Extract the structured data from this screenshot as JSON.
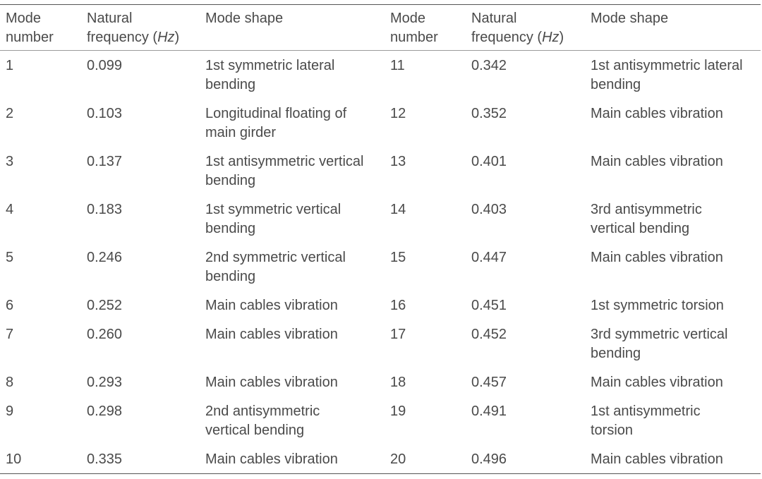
{
  "header": {
    "mode_number": [
      "Mode",
      "number"
    ],
    "natural_frequency": [
      "Natural",
      "frequency ("
    ],
    "unit": "Hz",
    "paren_close": ")",
    "mode_shape": "Mode shape"
  },
  "rows": [
    {
      "l_mode": "1",
      "l_freq": "0.099",
      "l_shape": [
        "1st symmetric lateral",
        "bending"
      ],
      "r_mode": "11",
      "r_freq": "0.342",
      "r_shape": [
        "1st antisymmetric lateral",
        "bending"
      ]
    },
    {
      "l_mode": "2",
      "l_freq": "0.103",
      "l_shape": [
        "Longitudinal floating of",
        "main girder"
      ],
      "r_mode": "12",
      "r_freq": "0.352",
      "r_shape": [
        "Main cables vibration",
        ""
      ]
    },
    {
      "l_mode": "3",
      "l_freq": "0.137",
      "l_shape": [
        "1st antisymmetric vertical",
        "bending"
      ],
      "r_mode": "13",
      "r_freq": "0.401",
      "r_shape": [
        "Main cables vibration",
        ""
      ]
    },
    {
      "l_mode": "4",
      "l_freq": "0.183",
      "l_shape": [
        "1st symmetric vertical",
        "bending"
      ],
      "r_mode": "14",
      "r_freq": "0.403",
      "r_shape": [
        "3rd antisymmetric",
        "vertical bending"
      ]
    },
    {
      "l_mode": "5",
      "l_freq": "0.246",
      "l_shape": [
        "2nd symmetric vertical",
        "bending"
      ],
      "r_mode": "15",
      "r_freq": "0.447",
      "r_shape": [
        "Main cables vibration",
        ""
      ]
    },
    {
      "l_mode": "6",
      "l_freq": "0.252",
      "l_shape": [
        "Main cables vibration",
        ""
      ],
      "r_mode": "16",
      "r_freq": "0.451",
      "r_shape": [
        "1st symmetric torsion",
        ""
      ]
    },
    {
      "l_mode": "7",
      "l_freq": "0.260",
      "l_shape": [
        "Main cables vibration",
        ""
      ],
      "r_mode": "17",
      "r_freq": "0.452",
      "r_shape": [
        "3rd symmetric vertical",
        "bending"
      ]
    },
    {
      "l_mode": "8",
      "l_freq": "0.293",
      "l_shape": [
        "Main cables vibration",
        ""
      ],
      "r_mode": "18",
      "r_freq": "0.457",
      "r_shape": [
        "Main cables vibration",
        ""
      ]
    },
    {
      "l_mode": "9",
      "l_freq": "0.298",
      "l_shape": [
        "2nd antisymmetric",
        "vertical bending"
      ],
      "r_mode": "19",
      "r_freq": "0.491",
      "r_shape": [
        "1st antisymmetric",
        "torsion"
      ]
    },
    {
      "l_mode": "10",
      "l_freq": "0.335",
      "l_shape": [
        "Main cables vibration",
        ""
      ],
      "r_mode": "20",
      "r_freq": "0.496",
      "r_shape": [
        "Main cables vibration",
        ""
      ]
    }
  ]
}
